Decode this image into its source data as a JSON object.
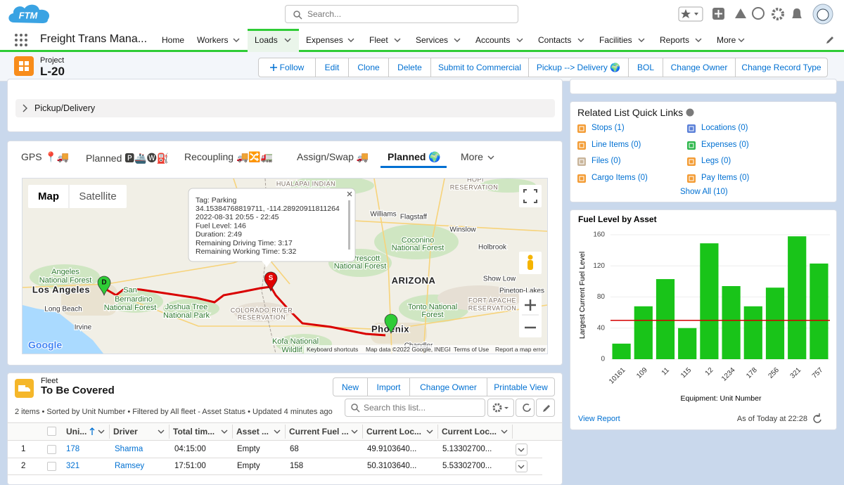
{
  "header": {
    "logo": "FTM",
    "search_placeholder": "Search..."
  },
  "nav": {
    "app_name": "Freight Trans Mana...",
    "items": [
      "Home",
      "Workers",
      "Loads",
      "Expenses",
      "Fleet",
      "Services",
      "Accounts",
      "Contacts",
      "Facilities",
      "Reports",
      "More"
    ],
    "active": 2
  },
  "record": {
    "object": "Project",
    "name": "L-20",
    "actions": [
      "Follow",
      "Edit",
      "Clone",
      "Delete",
      "Submit to Commercial",
      "Pickup --> Delivery 🌍",
      "BOL",
      "Change Owner",
      "Change Record Type"
    ]
  },
  "section": "Pickup/Delivery",
  "tabs": {
    "items": [
      "GPS 📍🚚",
      "Planned 🅿🚢🅦⛽",
      "Recoupling 🚚🔀🚛",
      "Assign/Swap 🚚",
      "Planned 🌍",
      "More"
    ],
    "active": 4
  },
  "map": {
    "types": [
      "Map",
      "Satellite"
    ],
    "popup": [
      "Tag: Parking",
      "34.15384768819711, -114.28920911811264",
      "2022-08-31 20:55 - 22:45",
      "Fuel Level: 146",
      "Duration: 2:49",
      "Remaining Driving Time: 3:17",
      "Remaining Working Time: 5:32"
    ],
    "labels": [
      "HUALAPAI INDIAN",
      "RESERVATION",
      "HOPI",
      "RESERVATION",
      "Williams",
      "Flagstaff",
      "Winslow",
      "Coconino",
      "National Forest",
      "Holbrook",
      "Prescott",
      "National Forest",
      "ARIZONA",
      "Show Low",
      "Pinetop-Lakes",
      "FORT APACHE",
      "RESERVATION",
      "Tonto National",
      "Forest",
      "Angeles",
      "National Forest",
      "Los Angeles",
      "San",
      "Bernardino",
      "National Forest",
      "Joshua Tree",
      "National Park",
      "Long Beach",
      "Irvine",
      "COLORADO RIVER",
      "RESERVATION",
      "Phoenix",
      "Kofa National",
      "Wildlif",
      "Chandler"
    ],
    "markers": [
      "D",
      "S"
    ],
    "footer": [
      "Keyboard shortcuts",
      "Map data ©2022 Google, INEGI",
      "Terms of Use",
      "Report a map error"
    ],
    "brand": "Google"
  },
  "fleet": {
    "object": "Fleet",
    "title": "To Be Covered",
    "buttons": [
      "New",
      "Import",
      "Change Owner",
      "Printable View"
    ],
    "summary": "2 items • Sorted by Unit Number • Filtered by All fleet - Asset Status • Updated 4 minutes ago",
    "search_placeholder": "Search this list...",
    "columns": [
      "Uni...",
      "Driver",
      "Total tim...",
      "Asset ...",
      "Current Fuel ...",
      "Current Loc...",
      "Current Loc..."
    ],
    "rows": [
      [
        "1",
        "178",
        "Sharma",
        "04:15:00",
        "Empty",
        "68",
        "49.9103640...",
        "5.13302700..."
      ],
      [
        "2",
        "321",
        "Ramsey",
        "17:51:00",
        "Empty",
        "158",
        "50.3103640...",
        "5.53302700..."
      ]
    ]
  },
  "quick_links": {
    "title": "Related List Quick Links",
    "items": [
      "Stops (1)",
      "Locations (0)",
      "Line Items (0)",
      "Expenses (0)",
      "Files (0)",
      "Legs (0)",
      "Cargo Items (0)",
      "Pay Items (0)"
    ],
    "show_all": "Show All (10)"
  },
  "chart_data": {
    "type": "bar",
    "title": "Fuel Level by Asset",
    "x_label": "Equipment: Unit Number",
    "y_label": "Largest Current Fuel Level",
    "categories": [
      "10161",
      "109",
      "11",
      "115",
      "12",
      "1234",
      "178",
      "256",
      "321",
      "757"
    ],
    "values": [
      20,
      68,
      103,
      40,
      149,
      94,
      68,
      92,
      158,
      123
    ],
    "color": "#19c419",
    "ylim": [
      0,
      160
    ],
    "yticks": [
      0,
      40,
      80,
      120,
      160
    ],
    "grid": true,
    "reference_line": {
      "value": 50,
      "color": "#d40000"
    },
    "footer": {
      "link": "View Report",
      "timestamp": "As of Today at 22:28"
    }
  }
}
